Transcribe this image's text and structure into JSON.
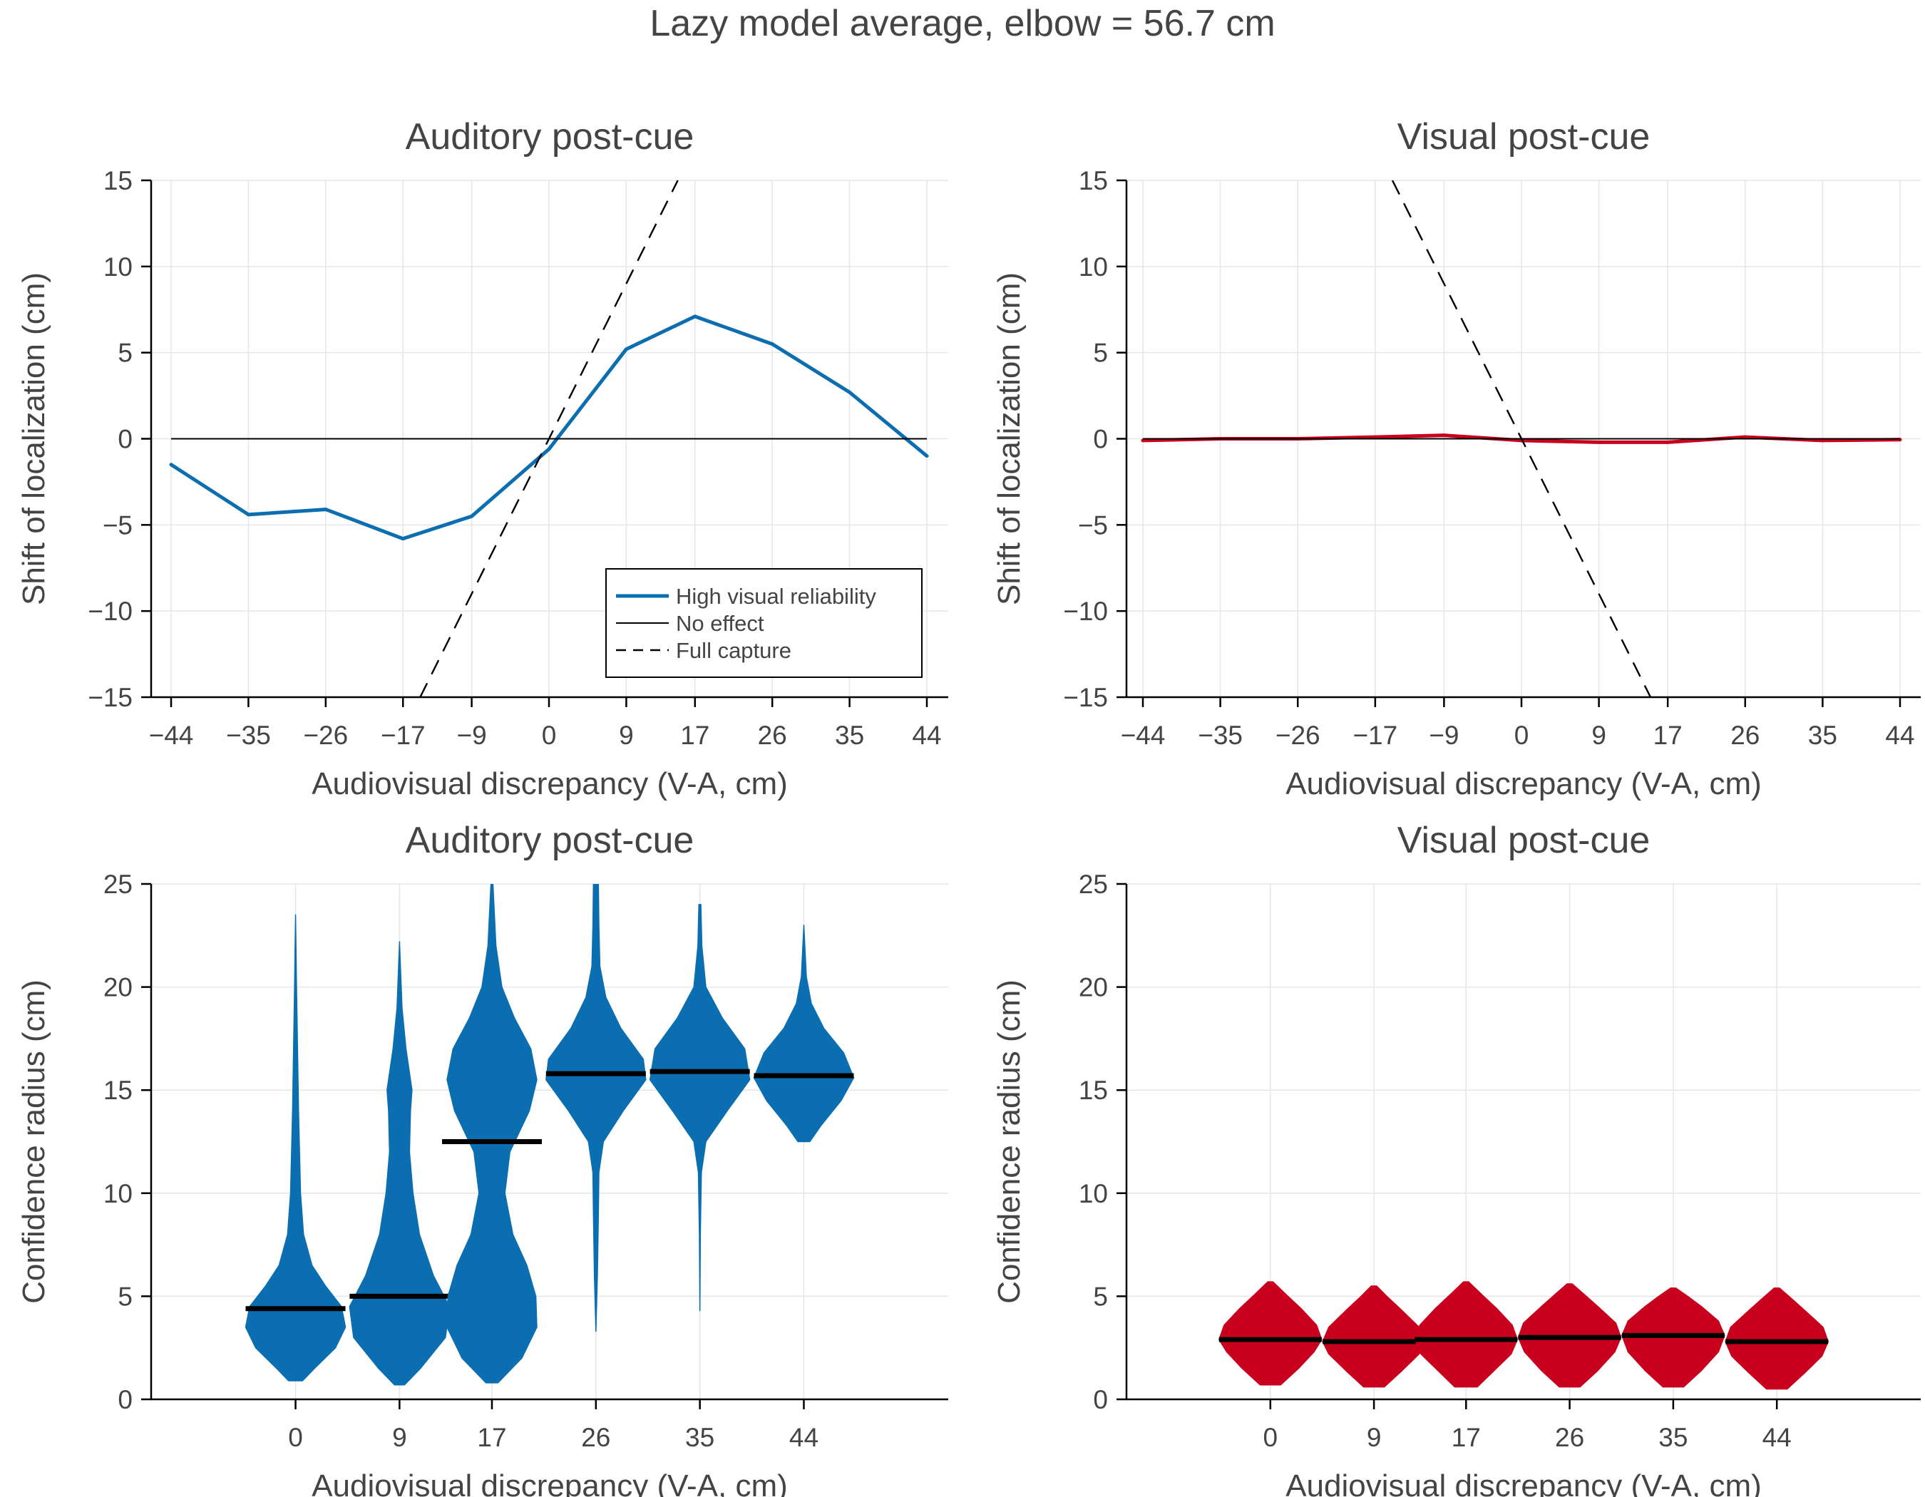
{
  "figure": {
    "suptitle": "Lazy model average, elbow = 56.7 cm"
  },
  "colors": {
    "auditory": "#0a6eb0",
    "visual": "#c8001e",
    "mean_bar": "#000000",
    "grid": "#e6e6e6",
    "axis": "#000000"
  },
  "legend": {
    "placement": "lower-right",
    "entries": [
      {
        "label": "High visual reliability",
        "style": "solid-blue"
      },
      {
        "label": "No effect",
        "style": "solid-black"
      },
      {
        "label": "Full capture",
        "style": "dashed-black"
      }
    ]
  },
  "chart_data": [
    {
      "type": "line",
      "title": "Auditory post-cue",
      "xlabel": "Audiovisual discrepancy (V-A, cm)",
      "ylabel": "Shift of localization (cm)",
      "x": [
        -44,
        -35,
        -26,
        -17,
        -9,
        0,
        9,
        17,
        26,
        35,
        44
      ],
      "xtick_labels": [
        "−44",
        "−35",
        "−26",
        "−17",
        "−9",
        "0",
        "9",
        "17",
        "26",
        "35",
        "44"
      ],
      "yticks": [
        -15,
        -10,
        -5,
        0,
        5,
        10,
        15
      ],
      "ytick_labels": [
        "−15",
        "−10",
        "−5",
        "0",
        "5",
        "10",
        "15"
      ],
      "xlim": [
        -46.5,
        46.5
      ],
      "ylim": [
        -15,
        15
      ],
      "grid": true,
      "series": [
        {
          "name": "High visual reliability",
          "role": "model",
          "values": [
            -1.5,
            -4.4,
            -4.1,
            -5.8,
            -4.5,
            -0.6,
            5.2,
            7.1,
            5.5,
            2.7,
            -1.0
          ]
        },
        {
          "name": "No effect",
          "role": "reference",
          "values": [
            0,
            0,
            0,
            0,
            0,
            0,
            0,
            0,
            0,
            0,
            0
          ]
        },
        {
          "name": "Full capture",
          "role": "reference-dashed",
          "slope": 1,
          "points": [
            [
              -15,
              -15
            ],
            [
              15,
              15
            ]
          ]
        }
      ]
    },
    {
      "type": "line",
      "title": "Visual post-cue",
      "xlabel": "Audiovisual discrepancy (V-A, cm)",
      "ylabel": "Shift of localization (cm)",
      "x": [
        -44,
        -35,
        -26,
        -17,
        -9,
        0,
        9,
        17,
        26,
        35,
        44
      ],
      "xtick_labels": [
        "−44",
        "−35",
        "−26",
        "−17",
        "−9",
        "0",
        "9",
        "17",
        "26",
        "35",
        "44"
      ],
      "yticks": [
        -15,
        -10,
        -5,
        0,
        5,
        10,
        15
      ],
      "ytick_labels": [
        "−15",
        "−10",
        "−5",
        "0",
        "5",
        "10",
        "15"
      ],
      "xlim": [
        -46.5,
        46.5
      ],
      "ylim": [
        -15,
        15
      ],
      "grid": true,
      "series": [
        {
          "role": "model",
          "values": [
            -0.1,
            0.0,
            0.0,
            0.1,
            0.2,
            -0.1,
            -0.2,
            -0.2,
            0.1,
            -0.1,
            -0.05
          ]
        },
        {
          "role": "reference",
          "values": [
            0,
            0,
            0,
            0,
            0,
            0,
            0,
            0,
            0,
            0,
            0
          ]
        },
        {
          "role": "reference-dashed",
          "slope": -1,
          "points": [
            [
              -15,
              15
            ],
            [
              15,
              -15
            ]
          ]
        }
      ]
    },
    {
      "type": "violin",
      "title": "Auditory post-cue",
      "xlabel": "Audiovisual discrepancy (V-A, cm)",
      "ylabel": "Confidence radius (cm)",
      "categories": [
        "0",
        "9",
        "17",
        "26",
        "35",
        "44"
      ],
      "positions": [
        0,
        9,
        17,
        26,
        35,
        44
      ],
      "xlim": [
        -12.5,
        56.5
      ],
      "ylim": [
        0,
        25
      ],
      "yticks": [
        0,
        5,
        10,
        15,
        20,
        25
      ],
      "ytick_labels": [
        "0",
        "5",
        "10",
        "15",
        "20",
        "25"
      ],
      "grid": true,
      "violins": [
        {
          "mean": 4.4,
          "min": 0.9,
          "max": 23.5,
          "density": [
            [
              0.9,
              0.14
            ],
            [
              1.5,
              0.38
            ],
            [
              2.5,
              0.8
            ],
            [
              3.5,
              1.0
            ],
            [
              4.5,
              0.92
            ],
            [
              5.5,
              0.6
            ],
            [
              6.5,
              0.33
            ],
            [
              8,
              0.16
            ],
            [
              10,
              0.1
            ],
            [
              12,
              0.08
            ],
            [
              14,
              0.06
            ],
            [
              17,
              0.04
            ],
            [
              20,
              0.02
            ],
            [
              23.5,
              0.0
            ]
          ]
        },
        {
          "mean": 5.0,
          "min": 0.7,
          "max": 22.2,
          "density": [
            [
              0.7,
              0.1
            ],
            [
              1.5,
              0.42
            ],
            [
              3,
              0.92
            ],
            [
              4.5,
              1.0
            ],
            [
              6,
              0.68
            ],
            [
              8,
              0.4
            ],
            [
              10,
              0.27
            ],
            [
              12,
              0.2
            ],
            [
              14,
              0.22
            ],
            [
              15,
              0.25
            ],
            [
              17,
              0.13
            ],
            [
              19,
              0.05
            ],
            [
              22.2,
              0.0
            ]
          ]
        },
        {
          "mean": 12.5,
          "min": 0.8,
          "max": 25.0,
          "density": [
            [
              0.8,
              0.12
            ],
            [
              2,
              0.6
            ],
            [
              3.5,
              0.9
            ],
            [
              5,
              0.88
            ],
            [
              6.5,
              0.7
            ],
            [
              8,
              0.42
            ],
            [
              10,
              0.26
            ],
            [
              12,
              0.36
            ],
            [
              14,
              0.75
            ],
            [
              15.5,
              0.9
            ],
            [
              17,
              0.78
            ],
            [
              18.5,
              0.45
            ],
            [
              20,
              0.2
            ],
            [
              22,
              0.08
            ],
            [
              25,
              0.02
            ]
          ]
        },
        {
          "mean": 15.8,
          "min": 3.3,
          "max": 25.0,
          "density": [
            [
              3.3,
              0.0
            ],
            [
              6,
              0.03
            ],
            [
              9,
              0.05
            ],
            [
              11,
              0.06
            ],
            [
              12.5,
              0.15
            ],
            [
              14,
              0.55
            ],
            [
              15.5,
              1.0
            ],
            [
              16.5,
              0.95
            ],
            [
              18,
              0.5
            ],
            [
              19.5,
              0.2
            ],
            [
              21,
              0.08
            ],
            [
              23,
              0.06
            ],
            [
              25,
              0.05
            ]
          ]
        },
        {
          "mean": 15.9,
          "min": 4.3,
          "max": 24.0,
          "density": [
            [
              4.3,
              0.0
            ],
            [
              8,
              0.01
            ],
            [
              11,
              0.03
            ],
            [
              12.5,
              0.12
            ],
            [
              14,
              0.55
            ],
            [
              15.5,
              1.0
            ],
            [
              17,
              0.9
            ],
            [
              18.5,
              0.45
            ],
            [
              20,
              0.12
            ],
            [
              22,
              0.04
            ],
            [
              24,
              0.02
            ]
          ]
        },
        {
          "mean": 15.7,
          "min": 12.5,
          "max": 23.0,
          "density": [
            [
              12.5,
              0.12
            ],
            [
              13.3,
              0.35
            ],
            [
              14.5,
              0.75
            ],
            [
              15.6,
              1.0
            ],
            [
              16.8,
              0.8
            ],
            [
              18,
              0.4
            ],
            [
              19.2,
              0.15
            ],
            [
              20.5,
              0.05
            ],
            [
              23,
              0.0
            ]
          ]
        }
      ]
    },
    {
      "type": "violin",
      "title": "Visual post-cue",
      "xlabel": "Audiovisual discrepancy (V-A, cm)",
      "ylabel": "Confidence radius (cm)",
      "categories": [
        "0",
        "9",
        "17",
        "26",
        "35",
        "44"
      ],
      "positions": [
        0,
        9,
        17,
        26,
        35,
        44
      ],
      "xlim": [
        -12.5,
        56.5
      ],
      "ylim": [
        0,
        25
      ],
      "yticks": [
        0,
        5,
        10,
        15,
        20,
        25
      ],
      "ytick_labels": [
        "0",
        "5",
        "10",
        "15",
        "20",
        "25"
      ],
      "grid": true,
      "violins": [
        {
          "mean": 2.9,
          "min": 0.7,
          "max": 5.7,
          "density": [
            [
              0.7,
              0.2
            ],
            [
              1.5,
              0.55
            ],
            [
              2.3,
              0.85
            ],
            [
              2.9,
              1.0
            ],
            [
              3.6,
              0.9
            ],
            [
              4.4,
              0.6
            ],
            [
              5.1,
              0.3
            ],
            [
              5.7,
              0.05
            ]
          ]
        },
        {
          "mean": 2.8,
          "min": 0.6,
          "max": 5.5,
          "density": [
            [
              0.6,
              0.2
            ],
            [
              1.4,
              0.55
            ],
            [
              2.2,
              0.88
            ],
            [
              2.8,
              1.0
            ],
            [
              3.5,
              0.88
            ],
            [
              4.3,
              0.55
            ],
            [
              5.0,
              0.25
            ],
            [
              5.5,
              0.05
            ]
          ]
        },
        {
          "mean": 2.9,
          "min": 0.6,
          "max": 5.7,
          "density": [
            [
              0.6,
              0.22
            ],
            [
              1.4,
              0.55
            ],
            [
              2.2,
              0.88
            ],
            [
              2.9,
              1.0
            ],
            [
              3.6,
              0.9
            ],
            [
              4.4,
              0.6
            ],
            [
              5.1,
              0.3
            ],
            [
              5.7,
              0.05
            ]
          ]
        },
        {
          "mean": 3.0,
          "min": 0.6,
          "max": 5.6,
          "density": [
            [
              0.6,
              0.2
            ],
            [
              1.4,
              0.55
            ],
            [
              2.3,
              0.88
            ],
            [
              3.0,
              1.0
            ],
            [
              3.7,
              0.9
            ],
            [
              4.5,
              0.55
            ],
            [
              5.1,
              0.28
            ],
            [
              5.6,
              0.05
            ]
          ]
        },
        {
          "mean": 3.1,
          "min": 0.6,
          "max": 5.4,
          "density": [
            [
              0.6,
              0.2
            ],
            [
              1.4,
              0.55
            ],
            [
              2.3,
              0.88
            ],
            [
              3.1,
              1.0
            ],
            [
              3.8,
              0.88
            ],
            [
              4.5,
              0.55
            ],
            [
              5.0,
              0.28
            ],
            [
              5.4,
              0.05
            ]
          ]
        },
        {
          "mean": 2.8,
          "min": 0.5,
          "max": 5.4,
          "density": [
            [
              0.5,
              0.2
            ],
            [
              1.3,
              0.55
            ],
            [
              2.1,
              0.88
            ],
            [
              2.8,
              1.0
            ],
            [
              3.5,
              0.9
            ],
            [
              4.3,
              0.55
            ],
            [
              4.9,
              0.28
            ],
            [
              5.4,
              0.05
            ]
          ]
        }
      ]
    }
  ]
}
